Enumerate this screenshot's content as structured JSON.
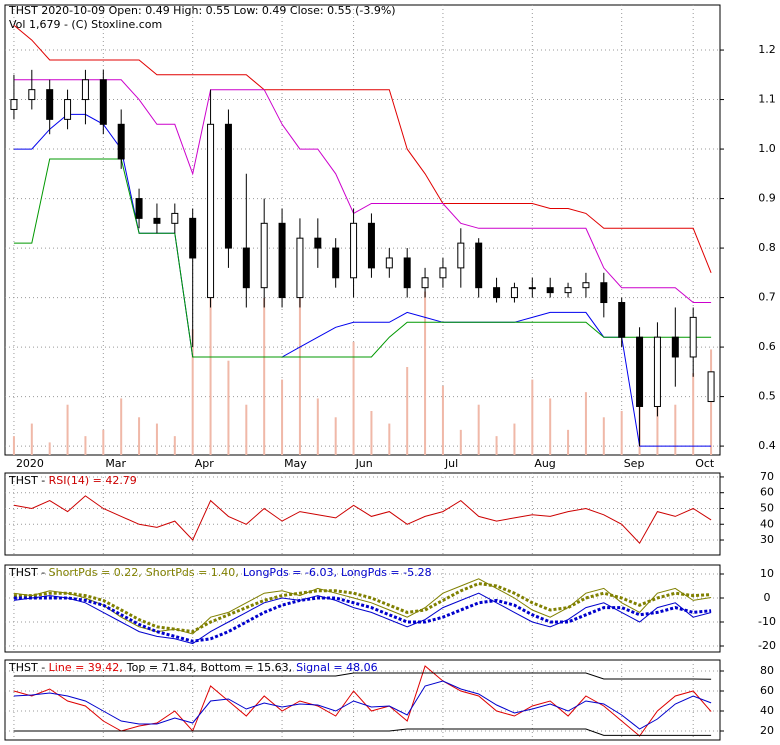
{
  "chart_data": [
    {
      "type": "candlestick",
      "title": "THST  2020-10-09 Open: 0.49  High: 0.55  Low: 0.49  Close: 0.55 (-3.9%)",
      "subtitle": "Vol 1,679  - (C) Stoxline.com",
      "categories": [
        "2020",
        null,
        null,
        null,
        null,
        "Mar",
        null,
        null,
        null,
        null,
        "Apr",
        null,
        null,
        null,
        null,
        "May",
        null,
        null,
        null,
        "Jun",
        null,
        null,
        null,
        null,
        "Jul",
        null,
        null,
        null,
        null,
        "Aug",
        null,
        null,
        null,
        null,
        "Sep",
        null,
        null,
        null,
        "Oct",
        null
      ],
      "open": [
        1.08,
        1.1,
        1.12,
        1.06,
        1.1,
        1.14,
        1.05,
        0.9,
        0.86,
        0.85,
        0.86,
        0.7,
        1.05,
        0.8,
        0.72,
        0.85,
        0.7,
        0.82,
        0.8,
        0.74,
        0.85,
        0.76,
        0.78,
        0.72,
        0.74,
        0.76,
        0.81,
        0.72,
        0.7,
        0.72,
        0.72,
        0.71,
        0.72,
        0.73,
        0.69,
        0.62,
        0.48,
        0.62,
        0.58,
        0.49
      ],
      "high": [
        1.15,
        1.16,
        1.14,
        1.12,
        1.16,
        1.16,
        1.08,
        0.92,
        0.89,
        0.89,
        0.88,
        1.12,
        1.08,
        0.95,
        0.9,
        0.88,
        0.86,
        0.86,
        0.82,
        0.88,
        0.87,
        0.8,
        0.8,
        0.76,
        0.78,
        0.84,
        0.82,
        0.74,
        0.73,
        0.74,
        0.74,
        0.73,
        0.75,
        0.75,
        0.7,
        0.64,
        0.65,
        0.68,
        0.68,
        0.55
      ],
      "low": [
        1.06,
        1.08,
        1.03,
        1.04,
        1.05,
        1.03,
        0.96,
        0.84,
        0.83,
        0.83,
        0.6,
        0.68,
        0.76,
        0.68,
        0.68,
        0.68,
        0.68,
        0.76,
        0.72,
        0.7,
        0.74,
        0.74,
        0.7,
        0.7,
        0.72,
        0.72,
        0.7,
        0.69,
        0.69,
        0.7,
        0.7,
        0.7,
        0.7,
        0.66,
        0.6,
        0.4,
        0.46,
        0.52,
        0.54,
        0.49
      ],
      "close": [
        1.1,
        1.12,
        1.06,
        1.1,
        1.14,
        1.05,
        0.98,
        0.86,
        0.85,
        0.87,
        0.78,
        1.05,
        0.8,
        0.72,
        0.85,
        0.7,
        0.82,
        0.8,
        0.74,
        0.85,
        0.76,
        0.78,
        0.72,
        0.74,
        0.76,
        0.81,
        0.72,
        0.7,
        0.72,
        0.72,
        0.71,
        0.72,
        0.73,
        0.69,
        0.62,
        0.48,
        0.62,
        0.58,
        0.66,
        0.55
      ],
      "series": [
        {
          "color": "#e00000",
          "values": [
            1.25,
            1.22,
            1.18,
            1.18,
            1.18,
            1.18,
            1.18,
            1.18,
            1.15,
            1.15,
            1.15,
            1.15,
            1.15,
            1.15,
            1.12,
            1.12,
            1.12,
            1.12,
            1.12,
            1.12,
            1.12,
            1.12,
            1.0,
            0.95,
            0.89,
            0.89,
            0.89,
            0.89,
            0.89,
            0.89,
            0.88,
            0.88,
            0.87,
            0.84,
            0.84,
            0.84,
            0.84,
            0.84,
            0.84,
            0.75
          ]
        },
        {
          "color": "#cc00cc",
          "values": [
            1.14,
            1.14,
            1.14,
            1.14,
            1.14,
            1.14,
            1.14,
            1.1,
            1.05,
            1.05,
            0.95,
            1.12,
            1.12,
            1.12,
            1.12,
            1.05,
            1.0,
            1.0,
            0.95,
            0.87,
            0.89,
            0.89,
            0.89,
            0.89,
            0.89,
            0.85,
            0.84,
            0.84,
            0.84,
            0.84,
            0.84,
            0.84,
            0.84,
            0.76,
            0.72,
            0.72,
            0.72,
            0.72,
            0.69,
            0.69
          ]
        },
        {
          "color": "#0000ee",
          "values": [
            1.0,
            1.0,
            1.04,
            1.07,
            1.07,
            1.05,
            1.0,
            0.83,
            0.83,
            0.83,
            0.58,
            0.58,
            0.58,
            0.58,
            0.58,
            0.58,
            0.6,
            0.62,
            0.64,
            0.65,
            0.65,
            0.65,
            0.67,
            0.66,
            0.65,
            0.65,
            0.65,
            0.65,
            0.65,
            0.66,
            0.67,
            0.67,
            0.67,
            0.62,
            0.62,
            0.4,
            0.4,
            0.4,
            0.4,
            0.4
          ]
        },
        {
          "color": "#009900",
          "values": [
            0.81,
            0.81,
            0.98,
            0.98,
            0.98,
            0.98,
            0.98,
            0.83,
            0.83,
            0.83,
            0.58,
            0.58,
            0.58,
            0.58,
            0.58,
            0.58,
            0.58,
            0.58,
            0.58,
            0.58,
            0.58,
            0.62,
            0.65,
            0.65,
            0.65,
            0.65,
            0.65,
            0.65,
            0.65,
            0.65,
            0.65,
            0.65,
            0.65,
            0.62,
            0.62,
            0.62,
            0.62,
            0.62,
            0.62,
            0.62
          ]
        }
      ],
      "volume": {
        "color": "#f0b8a8",
        "values": [
          300,
          500,
          200,
          800,
          300,
          400,
          900,
          600,
          500,
          300,
          2000,
          3500,
          1500,
          800,
          2500,
          1200,
          3000,
          900,
          600,
          1800,
          700,
          500,
          1400,
          2600,
          1100,
          400,
          800,
          300,
          500,
          1200,
          900,
          400,
          1000,
          600,
          700,
          1600,
          1100,
          800,
          1300,
          1679
        ]
      },
      "ylim": [
        0.382,
        1.291
      ],
      "yticks": [
        0.4,
        0.5,
        0.6,
        0.7,
        0.8,
        0.9,
        {
          "value": 1,
          "label": "1.0"
        },
        1.1,
        1.2
      ],
      "grid": true
    },
    {
      "type": "line",
      "title": "THST - ",
      "series": [
        {
          "name": "RSI(14) = 42.79",
          "color": "#cc0000",
          "values": [
            52,
            50,
            55,
            48,
            58,
            50,
            45,
            40,
            38,
            42,
            30,
            55,
            45,
            40,
            50,
            42,
            48,
            46,
            44,
            52,
            45,
            48,
            40,
            45,
            48,
            55,
            45,
            42,
            44,
            46,
            45,
            48,
            50,
            46,
            40,
            28,
            48,
            45,
            50,
            42.79
          ]
        }
      ],
      "ylim": [
        20.5,
        72.5
      ],
      "yticks": [
        30,
        40,
        50,
        60,
        70
      ],
      "grid": true
    },
    {
      "type": "line",
      "title": "THST - ",
      "series": [
        {
          "name": "ShortPds = 0.22,",
          "color": "#808000",
          "line_style": "solid",
          "values": [
            2,
            1,
            3,
            2,
            0,
            -3,
            -8,
            -12,
            -14,
            -13,
            -15,
            -8,
            -6,
            -2,
            2,
            3,
            1,
            4,
            2,
            0,
            -2,
            -5,
            -8,
            -4,
            2,
            5,
            8,
            4,
            0,
            -5,
            -8,
            -4,
            2,
            4,
            -2,
            -6,
            2,
            4,
            -1,
            0.22
          ]
        },
        {
          "name": "ShortPds = 1.40,",
          "color": "#808000",
          "line_style": "dotted",
          "values": [
            1,
            1,
            2,
            2,
            1,
            -1,
            -5,
            -9,
            -12,
            -13,
            -14,
            -10,
            -7,
            -4,
            -1,
            1,
            2,
            3,
            3,
            2,
            0,
            -3,
            -6,
            -5,
            -1,
            3,
            6,
            5,
            2,
            -2,
            -5,
            -4,
            0,
            2,
            0,
            -3,
            0,
            2,
            1,
            1.4
          ]
        },
        {
          "name": "LongPds = -6.03,",
          "color": "#0000cc",
          "line_style": "solid",
          "values": [
            -1,
            0,
            1,
            0,
            -2,
            -6,
            -10,
            -14,
            -16,
            -17,
            -19,
            -14,
            -10,
            -6,
            -2,
            0,
            -1,
            1,
            -1,
            -4,
            -6,
            -9,
            -12,
            -9,
            -4,
            -1,
            2,
            -2,
            -6,
            -10,
            -12,
            -9,
            -4,
            -2,
            -6,
            -10,
            -4,
            -2,
            -8,
            -6.03
          ]
        },
        {
          "name": "LongPds = -5.28",
          "color": "#0000cc",
          "line_style": "dotted",
          "values": [
            0,
            0,
            0,
            0,
            -1,
            -3,
            -7,
            -11,
            -14,
            -16,
            -18,
            -17,
            -14,
            -10,
            -6,
            -3,
            -1,
            0,
            0,
            -2,
            -4,
            -7,
            -10,
            -10,
            -8,
            -5,
            -2,
            -1,
            -3,
            -7,
            -10,
            -10,
            -7,
            -4,
            -4,
            -7,
            -6,
            -4,
            -6,
            -5.28
          ]
        }
      ],
      "ylim": [
        -22.5,
        13.75
      ],
      "yticks": [
        -20,
        -10,
        0,
        10
      ],
      "grid": true
    },
    {
      "type": "line",
      "title": "THST - ",
      "series": [
        {
          "name": "Line = 39.42,",
          "color": "#dd0000",
          "line_style": "solid",
          "values": [
            60,
            55,
            62,
            50,
            45,
            30,
            20,
            25,
            28,
            40,
            20,
            65,
            50,
            35,
            55,
            40,
            50,
            45,
            35,
            60,
            40,
            45,
            30,
            85,
            70,
            60,
            55,
            40,
            35,
            45,
            50,
            35,
            55,
            45,
            30,
            15,
            40,
            55,
            60,
            39.42
          ]
        },
        {
          "name": "Top = 71.84,",
          "color": "#000000",
          "line_style": "solid",
          "values": [
            75,
            75,
            75,
            75,
            75,
            75,
            75,
            75,
            75,
            75,
            75,
            75,
            75,
            75,
            75,
            75,
            75,
            75,
            75,
            78,
            78,
            78,
            78,
            78,
            78,
            78,
            78,
            78,
            78,
            78,
            78,
            78,
            78,
            72,
            72,
            72,
            72,
            72,
            72,
            71.84
          ]
        },
        {
          "name": "Bottom = 15.63,",
          "color": "#000000",
          "line_style": "solid",
          "values": [
            20,
            20,
            20,
            20,
            20,
            20,
            20,
            20,
            20,
            20,
            20,
            20,
            20,
            20,
            20,
            20,
            20,
            20,
            20,
            20,
            20,
            20,
            22,
            22,
            22,
            22,
            22,
            22,
            22,
            22,
            22,
            22,
            22,
            15.63,
            15.63,
            15.63,
            15.63,
            15.63,
            15.63,
            15.63
          ]
        },
        {
          "name": "Signal = 48.06",
          "color": "#0000cc",
          "line_style": "solid",
          "values": [
            55,
            56,
            58,
            55,
            50,
            40,
            30,
            27,
            27,
            33,
            28,
            50,
            52,
            42,
            48,
            44,
            47,
            46,
            40,
            50,
            44,
            45,
            36,
            65,
            70,
            62,
            57,
            46,
            38,
            42,
            47,
            40,
            50,
            47,
            36,
            22,
            32,
            47,
            55,
            48.06
          ]
        }
      ],
      "ylim": [
        11,
        91
      ],
      "yticks": [
        20,
        40,
        60,
        80
      ],
      "grid": true
    }
  ]
}
